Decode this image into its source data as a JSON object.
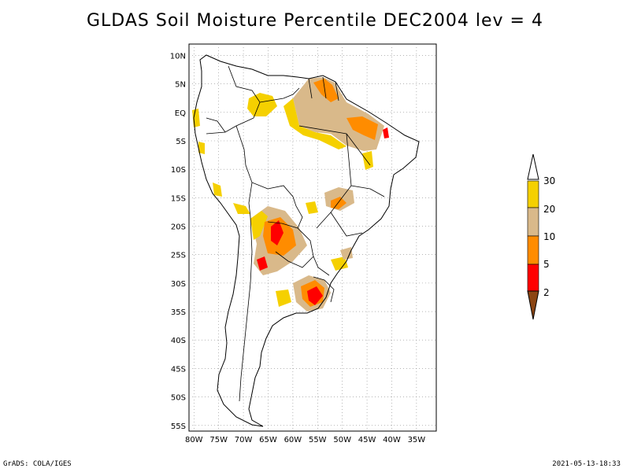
{
  "title": "GLDAS Soil Moisture Percentile DEC2004 lev = 4",
  "footer": {
    "left": "GrADS: COLA/IGES",
    "right": "2021-05-13-18:33"
  },
  "axes": {
    "lon_labels": [
      "80W",
      "75W",
      "70W",
      "65W",
      "60W",
      "55W",
      "50W",
      "45W",
      "40W",
      "35W"
    ],
    "lon_values": [
      -80,
      -75,
      -70,
      -65,
      -60,
      -55,
      -50,
      -45,
      -40,
      -35
    ],
    "lat_labels": [
      "10N",
      "5N",
      "EQ",
      "5S",
      "10S",
      "15S",
      "20S",
      "25S",
      "30S",
      "35S",
      "40S",
      "45S",
      "50S",
      "55S"
    ],
    "lat_values": [
      10,
      5,
      0,
      -5,
      -10,
      -15,
      -20,
      -25,
      -30,
      -35,
      -40,
      -45,
      -50,
      -55
    ],
    "lon_range": [
      -81,
      -31
    ],
    "lat_range": [
      -56,
      12
    ],
    "grid": true
  },
  "legend": {
    "labels": [
      "30",
      "20",
      "10",
      "5",
      "2"
    ],
    "colors": {
      "above_30": "#ffffff",
      "20_30": "#f5d000",
      "10_20": "#d9b98a",
      "5_10": "#ff8c00",
      "2_5": "#ff0000",
      "below_2": "#8b4513"
    }
  },
  "colors": {
    "coast": "#000000",
    "grid": "#888888"
  }
}
